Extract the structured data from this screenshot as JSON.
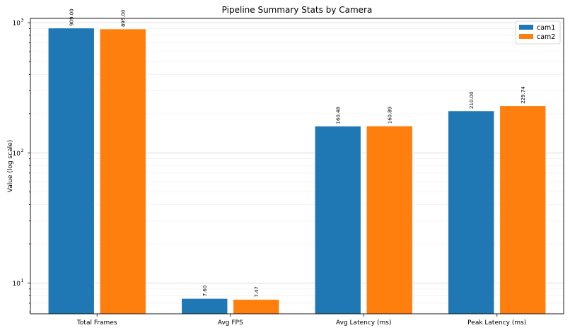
{
  "chart_data": {
    "type": "bar",
    "title": "Pipeline Summary Stats by Camera",
    "xlabel": "",
    "ylabel": "Value (log scale)",
    "yscale": "log",
    "ylim": [
      5.8,
      1080
    ],
    "grid": true,
    "legend_position": "top-right",
    "categories": [
      "Total Frames",
      "Avg FPS",
      "Avg Latency (ms)",
      "Peak Latency (ms)"
    ],
    "series": [
      {
        "name": "cam1",
        "color": "#1f77b4",
        "values": [
          909.0,
          7.6,
          160.48,
          210.0
        ],
        "labels": [
          "909.00",
          "7.60",
          "160.48",
          "210.00"
        ]
      },
      {
        "name": "cam2",
        "color": "#ff7f0e",
        "values": [
          895.0,
          7.47,
          160.89,
          229.74
        ],
        "labels": [
          "895.00",
          "7.47",
          "160.89",
          "229.74"
        ]
      }
    ],
    "y_ticks": [
      {
        "value": 10,
        "base": "10",
        "exp": "1"
      },
      {
        "value": 100,
        "base": "10",
        "exp": "2"
      },
      {
        "value": 1000,
        "base": "10",
        "exp": "3"
      }
    ]
  }
}
